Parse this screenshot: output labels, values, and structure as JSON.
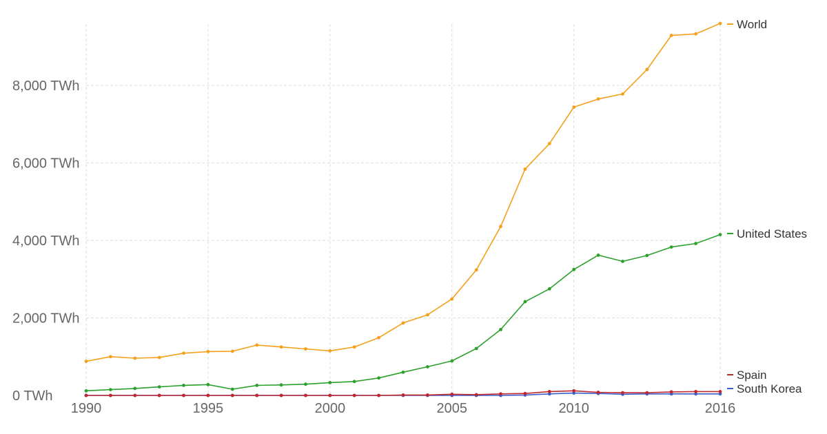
{
  "chart_data": {
    "type": "line",
    "title": "",
    "xlabel": "",
    "ylabel": "",
    "x_tick_labels": [
      "1990",
      "1995",
      "2000",
      "2005",
      "2010",
      "2016"
    ],
    "y_tick_labels": [
      "0 TWh",
      "2,000 TWh",
      "4,000 TWh",
      "6,000 TWh",
      "8,000 TWh"
    ],
    "xlim": [
      1990,
      2016
    ],
    "ylim": [
      0,
      9800
    ],
    "grid": true,
    "legend_placement": "right, inline at line ends",
    "x": [
      1990,
      1991,
      1992,
      1993,
      1994,
      1995,
      1996,
      1997,
      1998,
      1999,
      2000,
      2001,
      2002,
      2003,
      2004,
      2005,
      2006,
      2007,
      2008,
      2009,
      2010,
      2011,
      2012,
      2013,
      2014,
      2015,
      2016
    ],
    "series": [
      {
        "name": "World",
        "color": "#f5a01a",
        "values": [
          880,
          1000,
          960,
          980,
          1090,
          1130,
          1140,
          1300,
          1250,
          1200,
          1150,
          1250,
          1490,
          1870,
          2080,
          2490,
          3240,
          4360,
          5840,
          6500,
          7440,
          7650,
          7780,
          8410,
          9290,
          9330,
          9600
        ]
      },
      {
        "name": "United States",
        "color": "#2ca02c",
        "values": [
          120,
          150,
          180,
          220,
          260,
          280,
          160,
          260,
          270,
          290,
          330,
          360,
          450,
          600,
          740,
          890,
          1210,
          1700,
          2420,
          2750,
          3250,
          3620,
          3460,
          3610,
          3830,
          3920,
          4150
        ]
      },
      {
        "name": "Spain",
        "color": "#c0272d",
        "values": [
          0,
          0,
          0,
          0,
          0,
          0,
          0,
          0,
          0,
          0,
          0,
          0,
          0,
          10,
          10,
          30,
          20,
          40,
          50,
          100,
          120,
          80,
          70,
          70,
          90,
          100,
          100
        ]
      },
      {
        "name": "South Korea",
        "color": "#3a5fcd",
        "values": [
          0,
          0,
          0,
          0,
          0,
          0,
          0,
          0,
          0,
          0,
          0,
          0,
          0,
          0,
          0,
          0,
          0,
          0,
          10,
          40,
          60,
          50,
          30,
          40,
          40,
          40,
          40
        ]
      }
    ]
  }
}
